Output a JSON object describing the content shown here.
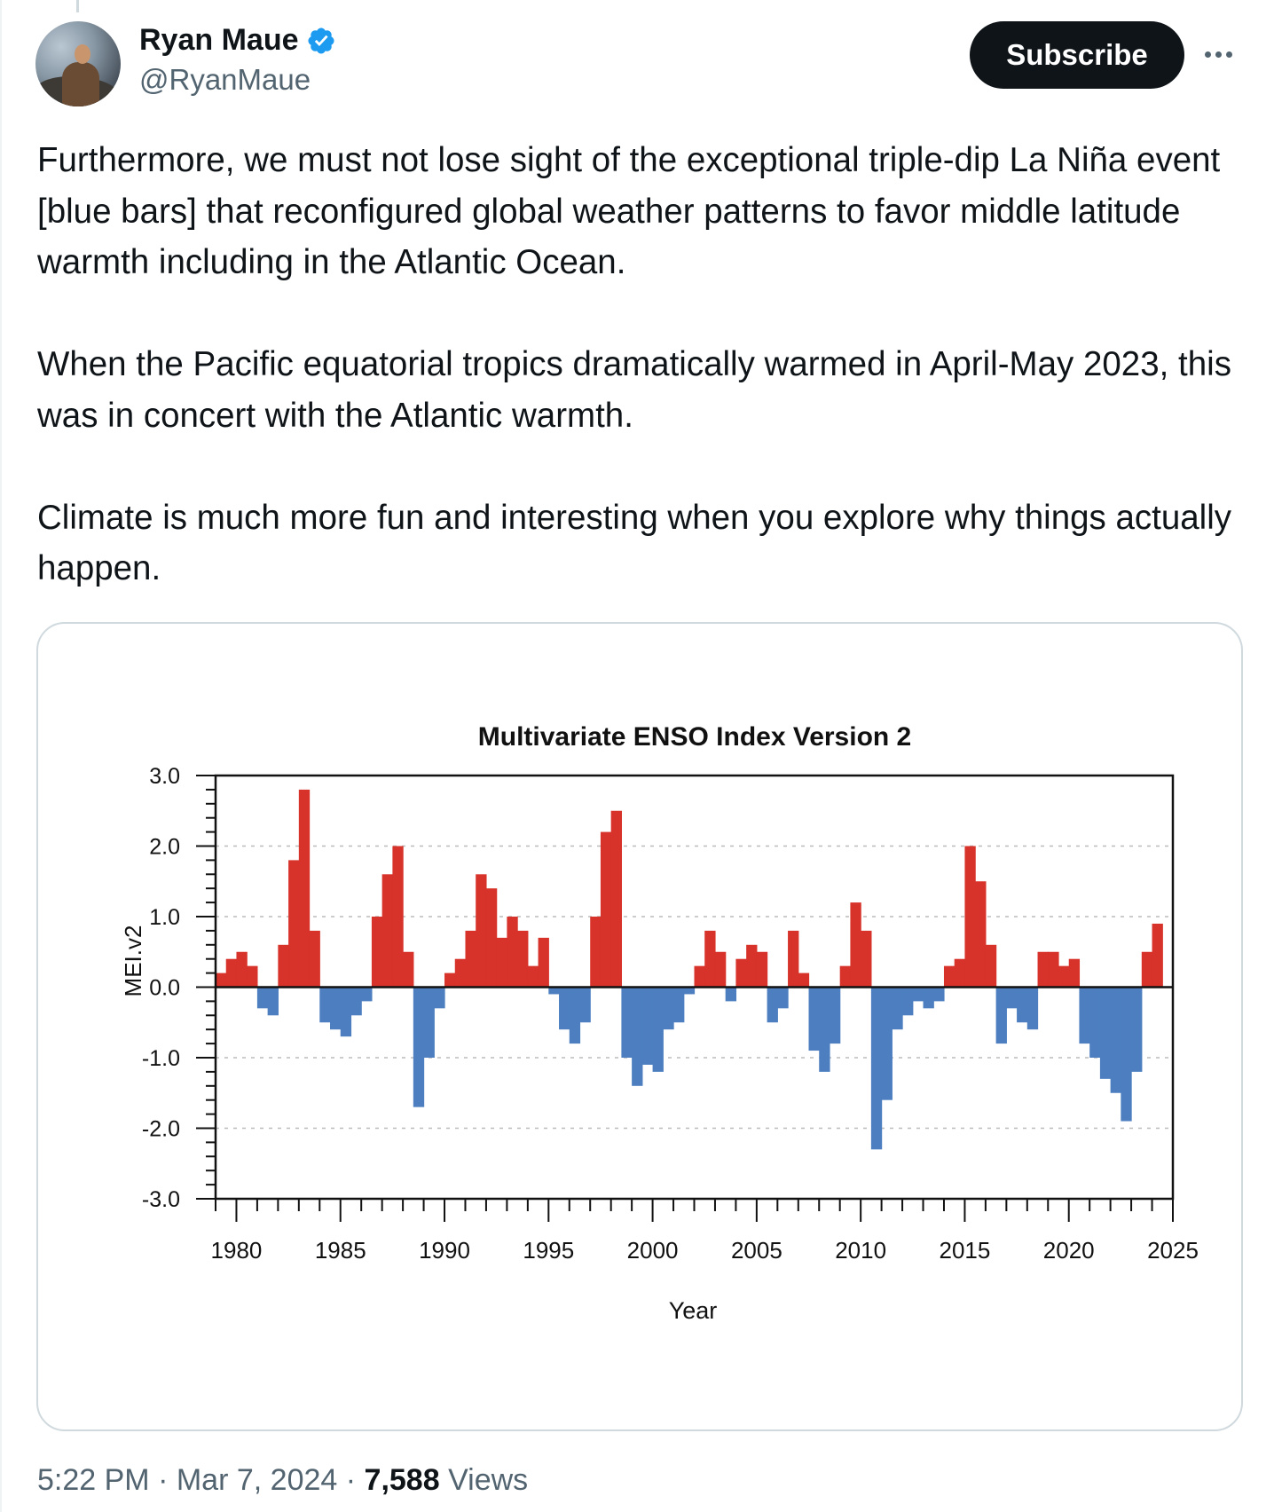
{
  "author": {
    "name": "Ryan Maue",
    "handle": "@RyanMaue",
    "verified_icon": "verified-badge-icon",
    "verified_color": "#1d9bf0"
  },
  "actions": {
    "subscribe_label": "Subscribe",
    "more_icon": "more-options-icon"
  },
  "tweet": {
    "paragraphs": [
      "Furthermore, we must not lose sight of the exceptional triple-dip La Niña event [blue bars] that reconfigured global weather patterns to favor middle latitude warmth including in the Atlantic Ocean.",
      "When the Pacific equatorial tropics dramatically warmed in April-May 2023, this was in concert with the Atlantic warmth.",
      "Climate is much more fun and interesting when you explore why things actually happen."
    ]
  },
  "meta": {
    "time": "5:22 PM",
    "separator": "·",
    "date": "Mar 7, 2024",
    "views_count": "7,588",
    "views_label": "Views"
  },
  "colors": {
    "positive": "#d7332b",
    "negative": "#4d7fc0",
    "text": "#0f1419",
    "secondary": "#536471"
  },
  "chart_data": {
    "type": "bar",
    "title": "Multivariate ENSO Index Version 2",
    "xlabel": "Year",
    "ylabel": "MEI.v2",
    "xlim": [
      1979,
      2025
    ],
    "ylim": [
      -3.0,
      3.0
    ],
    "yticks": [
      -3.0,
      -2.0,
      -1.0,
      0.0,
      1.0,
      2.0,
      3.0
    ],
    "ytick_labels": [
      "-3.0",
      "-2.0",
      "-1.0",
      "0.0",
      "1.0",
      "2.0",
      "3.0"
    ],
    "xticks": [
      1980,
      1985,
      1990,
      1995,
      2000,
      2005,
      2010,
      2015,
      2020,
      2025
    ],
    "xtick_labels": [
      "1980",
      "1985",
      "1990",
      "1995",
      "2000",
      "2005",
      "2010",
      "2015",
      "2020",
      "2025"
    ],
    "grid": "dashed horizontal at integer values",
    "series_note": "bimonthly index, red above zero, blue below zero",
    "x": [
      1979.0,
      1979.5,
      1980.0,
      1980.5,
      1981.0,
      1981.5,
      1982.0,
      1982.5,
      1983.0,
      1983.5,
      1984.0,
      1984.5,
      1985.0,
      1985.5,
      1986.0,
      1986.5,
      1987.0,
      1987.5,
      1988.0,
      1988.5,
      1989.0,
      1989.5,
      1990.0,
      1990.5,
      1991.0,
      1991.5,
      1992.0,
      1992.5,
      1993.0,
      1993.5,
      1994.0,
      1994.5,
      1995.0,
      1995.5,
      1996.0,
      1996.5,
      1997.0,
      1997.5,
      1998.0,
      1998.5,
      1999.0,
      1999.5,
      2000.0,
      2000.5,
      2001.0,
      2001.5,
      2002.0,
      2002.5,
      2003.0,
      2003.5,
      2004.0,
      2004.5,
      2005.0,
      2005.5,
      2006.0,
      2006.5,
      2007.0,
      2007.5,
      2008.0,
      2008.5,
      2009.0,
      2009.5,
      2010.0,
      2010.5,
      2011.0,
      2011.5,
      2012.0,
      2012.5,
      2013.0,
      2013.5,
      2014.0,
      2014.5,
      2015.0,
      2015.5,
      2016.0,
      2016.5,
      2017.0,
      2017.5,
      2018.0,
      2018.5,
      2019.0,
      2019.5,
      2020.0,
      2020.5,
      2021.0,
      2021.5,
      2022.0,
      2022.5,
      2023.0,
      2023.5,
      2024.0
    ],
    "values": [
      0.2,
      0.4,
      0.5,
      0.3,
      -0.3,
      -0.4,
      0.6,
      1.8,
      2.8,
      0.8,
      -0.5,
      -0.6,
      -0.7,
      -0.4,
      -0.2,
      1.0,
      1.6,
      2.0,
      0.5,
      -1.7,
      -1.0,
      -0.3,
      0.2,
      0.4,
      0.8,
      1.6,
      1.4,
      0.7,
      1.0,
      0.8,
      0.3,
      0.7,
      -0.1,
      -0.6,
      -0.8,
      -0.5,
      1.0,
      2.2,
      2.5,
      -1.0,
      -1.4,
      -1.1,
      -1.2,
      -0.6,
      -0.5,
      -0.1,
      0.3,
      0.8,
      0.5,
      -0.2,
      0.4,
      0.6,
      0.5,
      -0.5,
      -0.3,
      0.8,
      0.2,
      -0.9,
      -1.2,
      -0.8,
      0.3,
      1.2,
      0.8,
      -2.3,
      -1.6,
      -0.6,
      -0.4,
      -0.2,
      -0.3,
      -0.2,
      0.3,
      0.4,
      2.0,
      1.5,
      0.6,
      -0.8,
      -0.3,
      -0.5,
      -0.6,
      0.5,
      0.5,
      0.3,
      0.4,
      -0.8,
      -1.0,
      -1.3,
      -1.5,
      -1.9,
      -1.2,
      0.5,
      0.9
    ]
  }
}
